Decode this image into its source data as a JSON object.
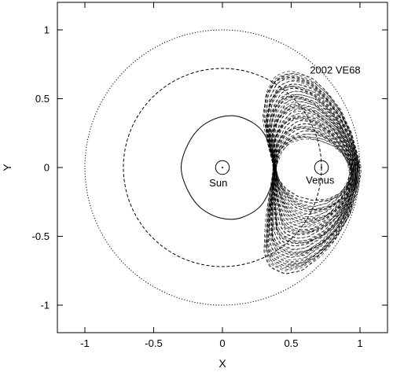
{
  "chart_data": {
    "type": "line",
    "xlabel": "X",
    "ylabel": "Y",
    "xlim": [
      -1.2,
      1.2
    ],
    "ylim": [
      -1.2,
      1.2
    ],
    "xticks": [
      -1,
      -0.5,
      0,
      0.5,
      1
    ],
    "yticks": [
      -1,
      -0.5,
      0,
      0.5,
      1
    ],
    "xtick_labels": [
      "-1",
      "-0.5",
      "0",
      "0.5",
      "1"
    ],
    "ytick_labels": [
      "-1",
      "-0.5",
      "0",
      "0.5",
      "1"
    ],
    "grid": false,
    "legend": "none",
    "colors": {
      "line": "#000000",
      "background": "#ffffff"
    },
    "circles": [
      {
        "cx": 0,
        "cy": 0,
        "r": 1.0,
        "style": "dotted"
      },
      {
        "cx": 0,
        "cy": 0,
        "r": 0.72,
        "style": "dashed"
      },
      {
        "cx": 0,
        "cy": 0,
        "r": 0.05,
        "style": "solid"
      },
      {
        "cx": 0.72,
        "cy": 0,
        "r": 0.05,
        "style": "solid"
      }
    ],
    "inner_loop": {
      "style": "solid",
      "x": [
        0.38,
        0.3,
        0.15,
        0.0,
        -0.15,
        -0.25,
        -0.3,
        -0.25,
        -0.15,
        0.0,
        0.15,
        0.3,
        0.38
      ],
      "y": [
        0.0,
        0.25,
        0.36,
        0.37,
        0.3,
        0.17,
        0.0,
        -0.17,
        -0.3,
        -0.37,
        -0.36,
        -0.25,
        0.0
      ]
    },
    "asteroid_orbits": {
      "style": "dashed",
      "n_curves": 60,
      "outer_x": [
        0.38,
        0.33,
        0.3,
        0.32,
        0.38,
        0.46,
        0.55,
        0.65,
        0.76,
        0.86,
        0.94,
        0.98,
        1.0,
        0.98,
        0.92,
        0.82,
        0.7,
        0.57,
        0.45,
        0.35,
        0.3,
        0.33,
        0.38
      ],
      "outer_y": [
        0.0,
        0.18,
        0.37,
        0.55,
        0.66,
        0.7,
        0.69,
        0.65,
        0.55,
        0.42,
        0.25,
        0.1,
        0.0,
        -0.15,
        -0.35,
        -0.53,
        -0.66,
        -0.75,
        -0.77,
        -0.73,
        -0.63,
        -0.32,
        0.0
      ],
      "inner_x": [
        0.38,
        0.42,
        0.5,
        0.6,
        0.7,
        0.8,
        0.88,
        0.92,
        0.93,
        0.91,
        0.86,
        0.77,
        0.66,
        0.55,
        0.46,
        0.41,
        0.38
      ],
      "inner_y": [
        0.0,
        0.11,
        0.18,
        0.21,
        0.2,
        0.16,
        0.09,
        0.02,
        -0.04,
        -0.11,
        -0.18,
        -0.23,
        -0.24,
        -0.21,
        -0.15,
        -0.08,
        0.0
      ]
    },
    "annotations": [
      {
        "text": "2002 VE68",
        "x": 0.82,
        "y": 0.71
      },
      {
        "text": "Sun",
        "x": -0.03,
        "y": -0.11
      },
      {
        "text": "Venus",
        "x": 0.71,
        "y": -0.09
      }
    ]
  }
}
